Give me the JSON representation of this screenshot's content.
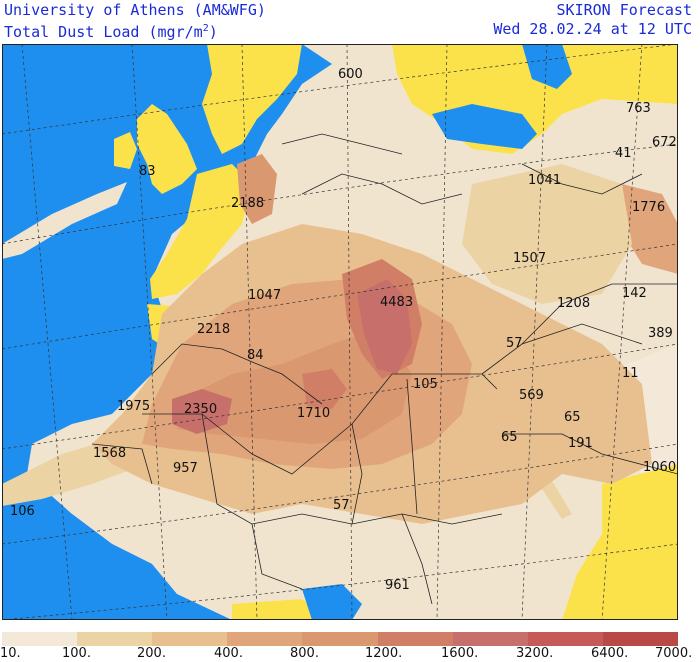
{
  "header": {
    "institution": "University of Athens (AM&WFG)",
    "field": "Total Dust Load (mgr/m",
    "field_sup": "2",
    "field_close": ")",
    "forecast": "SKIRON Forecast",
    "valid_time": "Wed 28.02.24 at 12 UTC"
  },
  "colors": {
    "sea": "#1e8fee",
    "land_nodust": "#fbe24a",
    "border": "#222222"
  },
  "legend": {
    "ticks": [
      "10.",
      "100.",
      "200.",
      "400.",
      "800.",
      "1200.",
      "1600.",
      "3200.",
      "6400.",
      "7000."
    ],
    "bins": [
      "#f4e9d8",
      "#ecd3a4",
      "#e8c08f",
      "#e1a57c",
      "#d99870",
      "#d07f66",
      "#c76f6a",
      "#c55a58",
      "#b94945"
    ]
  },
  "values": [
    {
      "text": "600"
    },
    {
      "text": "763"
    },
    {
      "text": "672"
    },
    {
      "text": "83"
    },
    {
      "text": "41"
    },
    {
      "text": "1041"
    },
    {
      "text": "2188"
    },
    {
      "text": "1776"
    },
    {
      "text": "1507"
    },
    {
      "text": "1047"
    },
    {
      "text": "4483"
    },
    {
      "text": "1208"
    },
    {
      "text": "142"
    },
    {
      "text": "2218"
    },
    {
      "text": "57"
    },
    {
      "text": "389"
    },
    {
      "text": "84"
    },
    {
      "text": "11"
    },
    {
      "text": "105"
    },
    {
      "text": "569"
    },
    {
      "text": "1975"
    },
    {
      "text": "2350"
    },
    {
      "text": "1710"
    },
    {
      "text": "65"
    },
    {
      "text": "65"
    },
    {
      "text": "191"
    },
    {
      "text": "1568"
    },
    {
      "text": "957"
    },
    {
      "text": "1060"
    },
    {
      "text": "106"
    },
    {
      "text": "57"
    },
    {
      "text": "961"
    }
  ]
}
